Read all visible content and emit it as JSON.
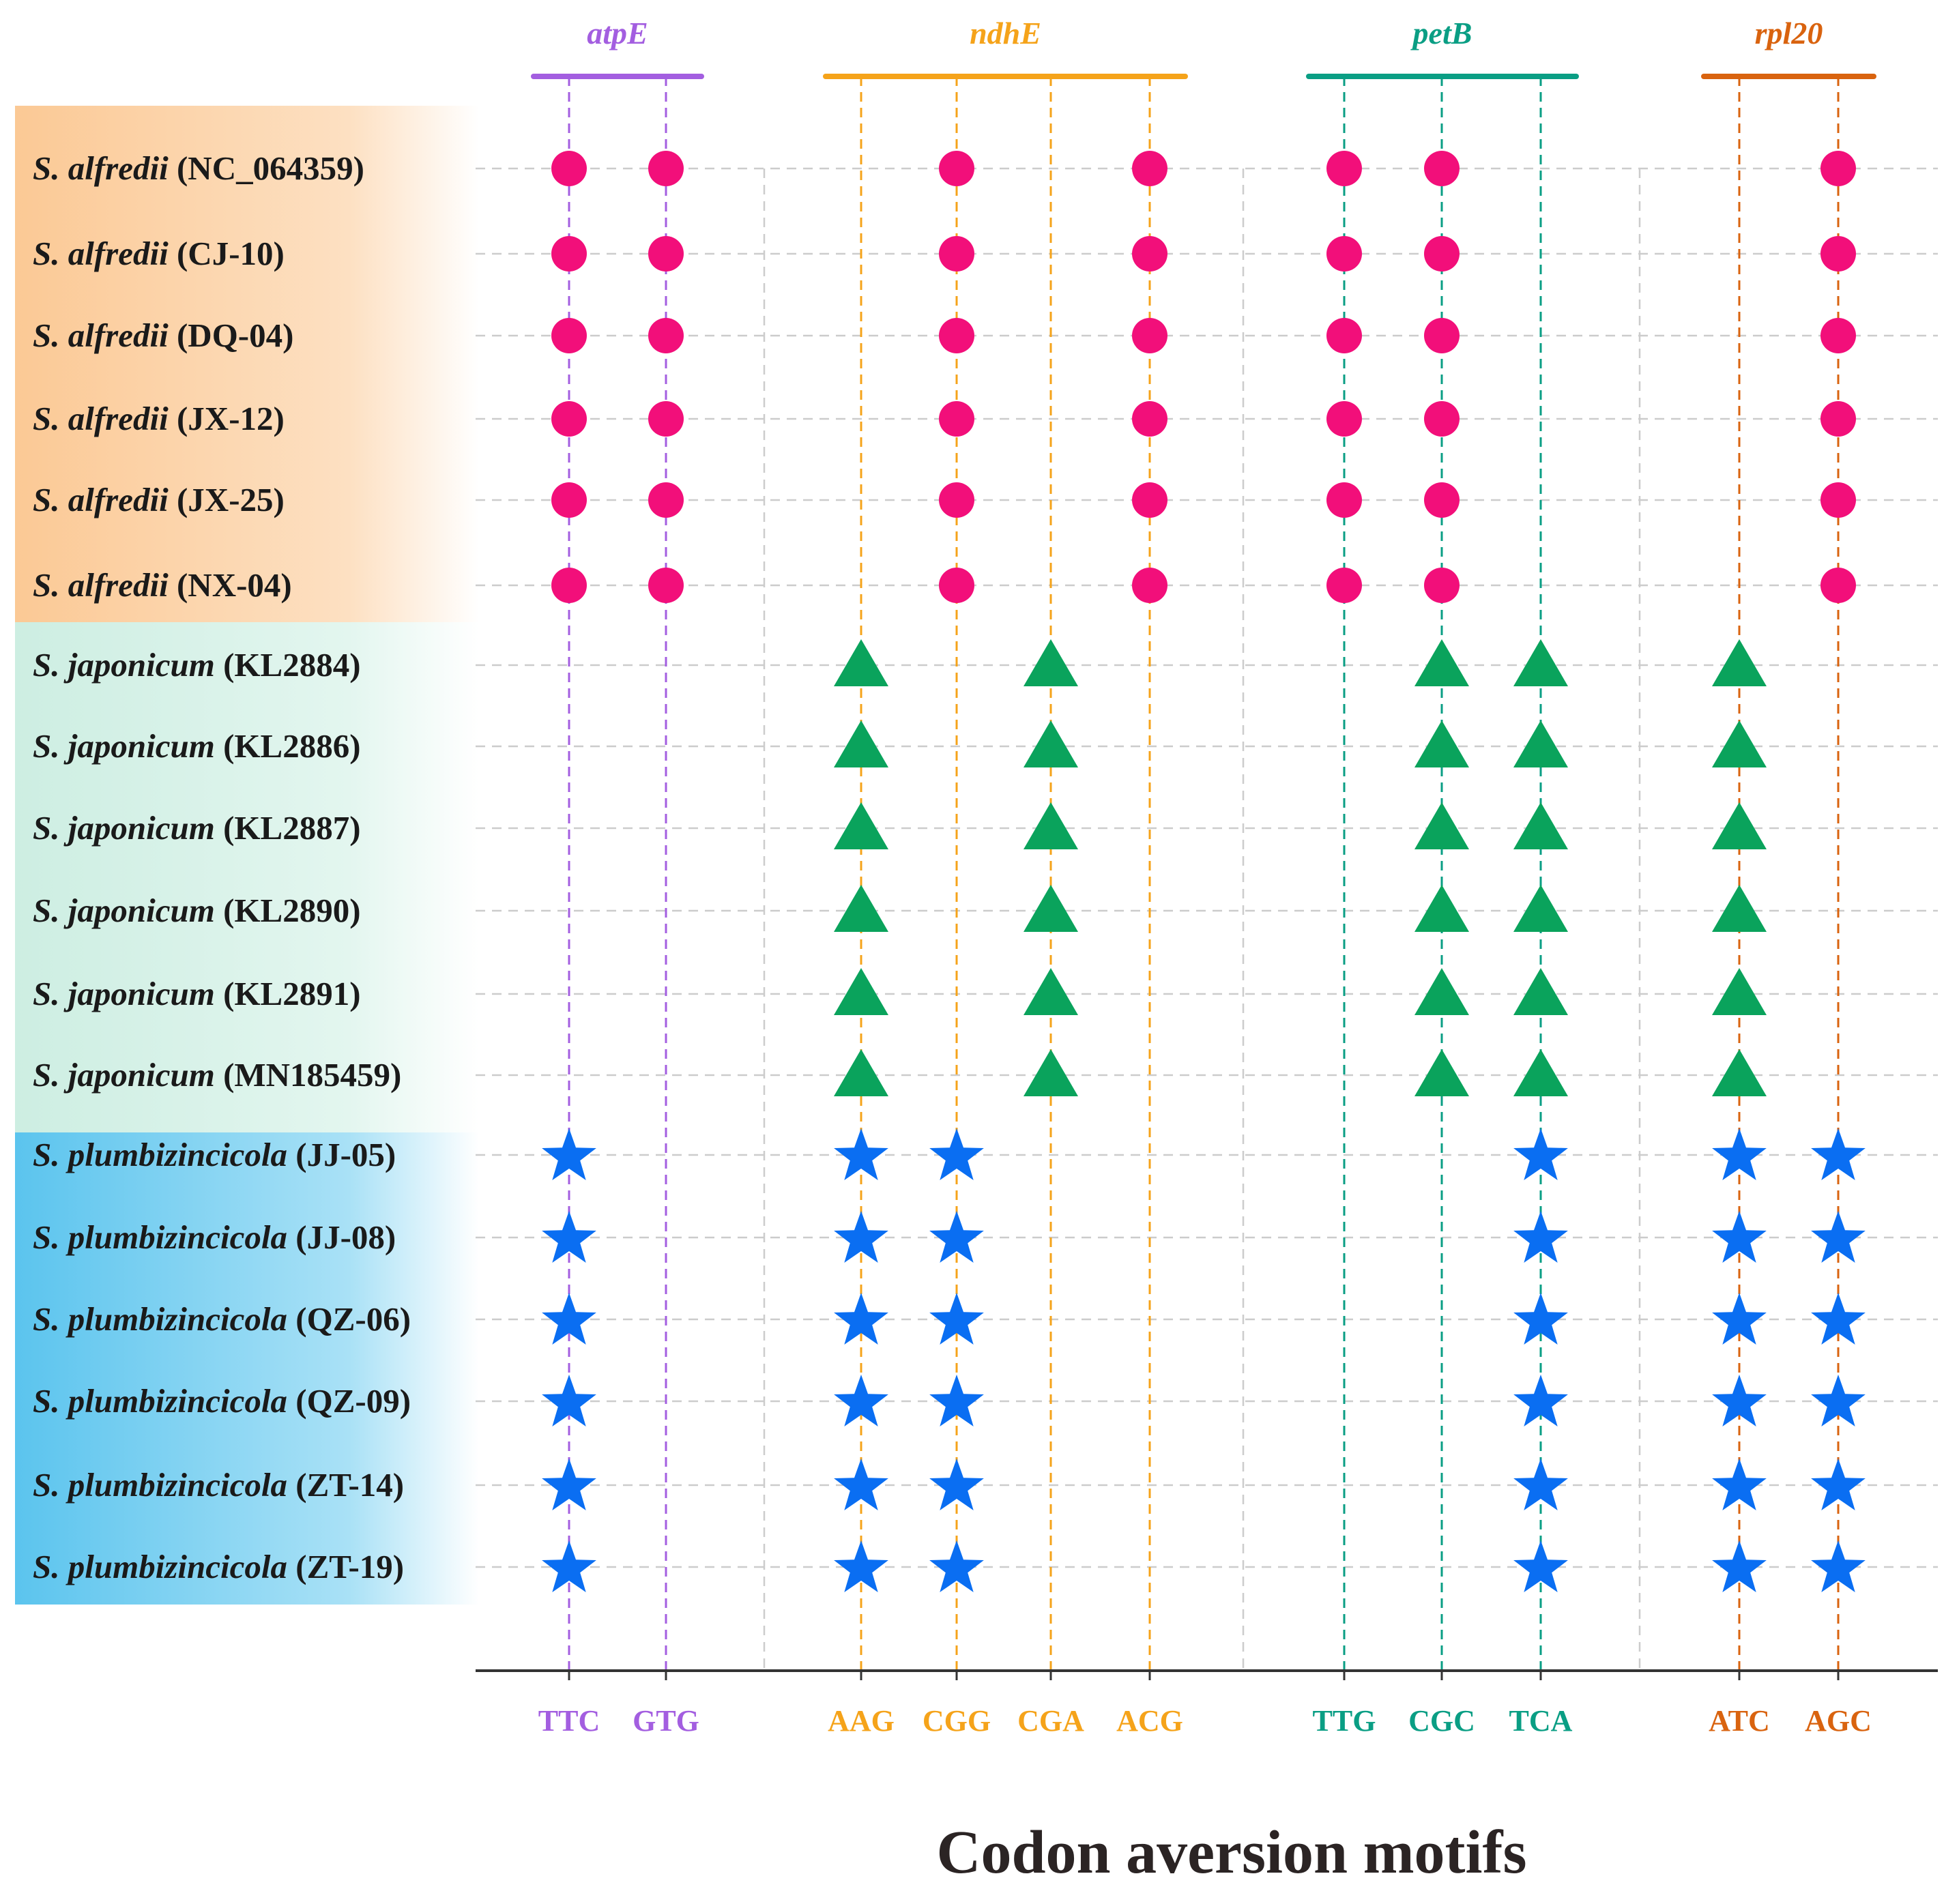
{
  "chart_data": {
    "type": "dot-matrix",
    "xlabel": "Codon aversion motifs",
    "genes": [
      {
        "name": "atpE",
        "color": "#a35ee0",
        "codons": [
          "TTC",
          "GTG"
        ]
      },
      {
        "name": "ndhE",
        "color": "#f5a31a",
        "codons": [
          "AAG",
          "CGG",
          "CGA",
          "ACG"
        ]
      },
      {
        "name": "petB",
        "color": "#0a9e84",
        "codons": [
          "TTG",
          "CGC",
          "TCA"
        ]
      },
      {
        "name": "rpl20",
        "color": "#d9630f",
        "codons": [
          "ATC",
          "AGC"
        ]
      }
    ],
    "groups": [
      {
        "species": "S. alfredii",
        "marker": "circle",
        "color": "#f20f7a",
        "band_color": "#fbc995",
        "samples": [
          "NC_064359",
          "CJ-10",
          "DQ-04",
          "JX-12",
          "JX-25",
          "NX-04"
        ],
        "present": [
          "TTC",
          "GTG",
          "CGG",
          "ACG",
          "TTG",
          "CGC",
          "AGC"
        ]
      },
      {
        "species": "S. japonicum",
        "marker": "triangle",
        "color": "#0aa35c",
        "band_color": "#cfeee3",
        "samples": [
          "KL2884",
          "KL2886",
          "KL2887",
          "KL2890",
          "KL2891",
          "MN185459"
        ],
        "present": [
          "AAG",
          "CGA",
          "CGC",
          "TCA",
          "ATC"
        ]
      },
      {
        "species": "S. plumbizincicola",
        "marker": "star",
        "color": "#0a6ef2",
        "band_color": "#5fc6ee",
        "samples": [
          "JJ-05",
          "JJ-08",
          "QZ-06",
          "QZ-09",
          "ZT-14",
          "ZT-19"
        ],
        "present": [
          "TTC",
          "AAG",
          "CGG",
          "TCA",
          "ATC",
          "AGC"
        ]
      }
    ]
  }
}
